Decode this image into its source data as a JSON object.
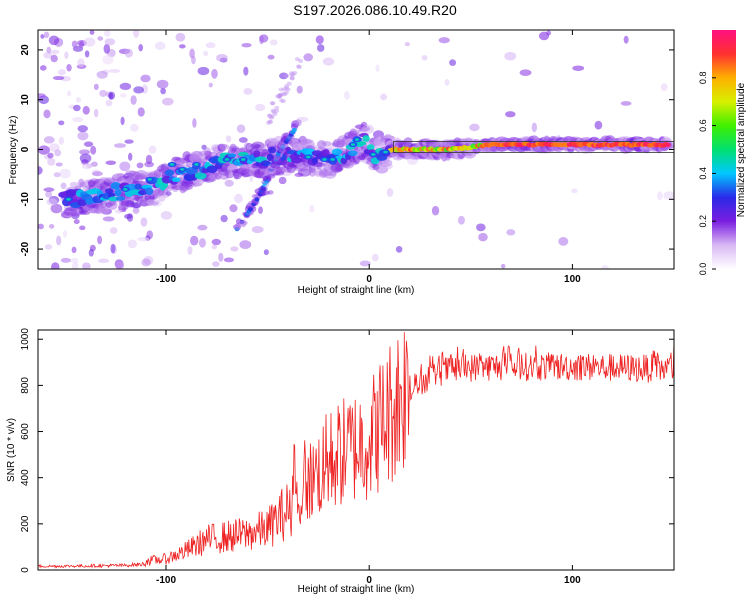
{
  "title": "S197.2026.086.10.49.R20",
  "chart_data": [
    {
      "type": "heatmap",
      "name": "spectrogram",
      "xlabel": "Height of straight line (km)",
      "ylabel": "Frequency (Hz)",
      "xlim": [
        -163,
        150
      ],
      "ylim": [
        -24,
        24
      ],
      "xticks": [
        -100,
        0,
        100
      ],
      "yticks": [
        -20,
        -10,
        0,
        10,
        20
      ],
      "colorbar": {
        "label": "Normalized spectral amplitude",
        "range": [
          0,
          1
        ],
        "ticks": [
          "0.0",
          "0.2",
          "0.4",
          "0.6",
          "0.8"
        ],
        "colormap": [
          "#ffffff",
          "#d9b8f5",
          "#7a1ee0",
          "#2a2ae8",
          "#00c8ff",
          "#00e070",
          "#40f000",
          "#d8f000",
          "#ffb000",
          "#ff3030",
          "#ff1080"
        ]
      },
      "features": [
        {
          "name": "main line",
          "x": [
            -150,
            -130,
            -110,
            -95,
            -80,
            -70,
            -55,
            -40,
            -30,
            -20,
            -12,
            -6,
            -3,
            2,
            6,
            12,
            20,
            40,
            60,
            100,
            148
          ],
          "y": [
            -10,
            -9,
            -8,
            -5,
            -3.5,
            -2,
            -2,
            -1,
            -1.5,
            -2,
            -1,
            1,
            2,
            -1,
            -1,
            0,
            0,
            0,
            1,
            1,
            1
          ]
        },
        {
          "name": "diagonal branch A",
          "x": [
            -65,
            -55,
            -47,
            -40
          ],
          "y": [
            -16,
            -10,
            -3,
            3
          ]
        },
        {
          "name": "diagonal branch B",
          "x": [
            -60,
            -52,
            -45,
            -35
          ],
          "y": [
            -13,
            -8,
            -1,
            5
          ]
        }
      ]
    },
    {
      "type": "line",
      "name": "snr",
      "xlabel": "Height of straight line (km)",
      "ylabel": "SNR (10 * v/v)",
      "xlim": [
        -163,
        150
      ],
      "ylim": [
        0,
        1040
      ],
      "xticks": [
        -100,
        0,
        100
      ],
      "yticks": [
        0,
        200,
        400,
        600,
        800,
        1000
      ],
      "color": "#ee2222",
      "series": [
        {
          "name": "envelope",
          "x": [
            -163,
            -140,
            -120,
            -100,
            -90,
            -80,
            -70,
            -60,
            -50,
            -40,
            -30,
            -20,
            -10,
            0,
            10,
            20,
            30,
            40,
            60,
            80,
            100,
            120,
            150
          ],
          "y": [
            20,
            22,
            25,
            40,
            70,
            110,
            120,
            130,
            150,
            220,
            360,
            450,
            500,
            540,
            650,
            780,
            850,
            880,
            890,
            890,
            890,
            885,
            880
          ]
        }
      ]
    }
  ]
}
